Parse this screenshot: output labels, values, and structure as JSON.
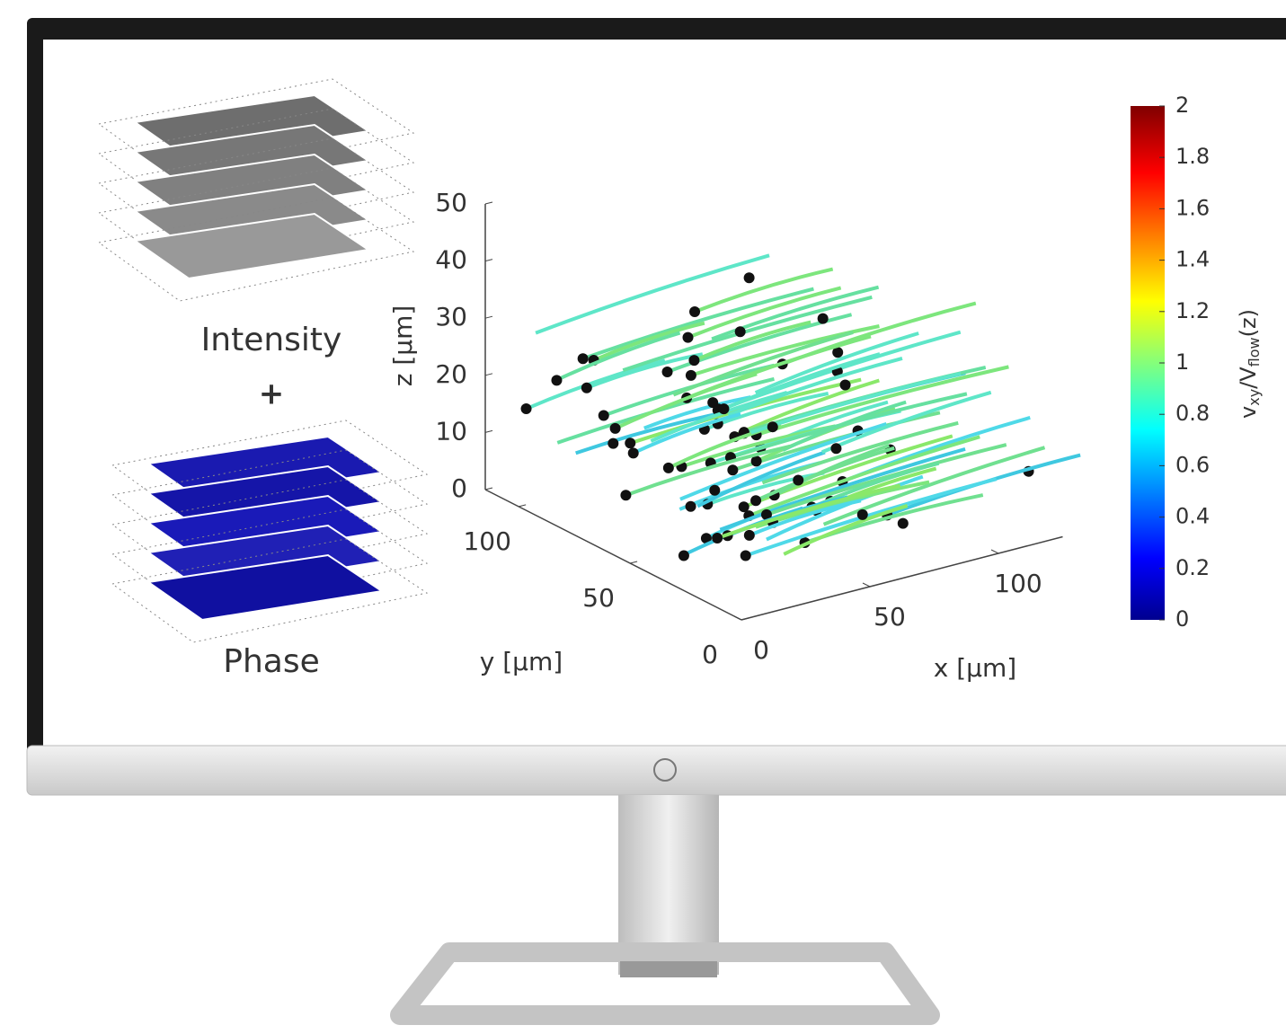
{
  "panels": {
    "intensity_label": "Intensity",
    "plus": "+",
    "phase_label": "Phase"
  },
  "plot": {
    "z_axis": {
      "label": "z [μm]",
      "lim": [
        0,
        50
      ],
      "ticks": [
        0,
        10,
        20,
        30,
        40,
        50
      ]
    },
    "y_axis": {
      "label": "y [μm]",
      "lim": [
        0,
        115
      ],
      "ticks": [
        0,
        50,
        100
      ]
    },
    "x_axis": {
      "label": "x [μm]",
      "lim": [
        0,
        125
      ],
      "ticks": [
        0,
        50,
        100
      ]
    },
    "colorbar": {
      "label": [
        "v",
        "xy",
        "/V",
        "flow",
        "(z)"
      ],
      "lim": [
        0,
        2
      ],
      "ticks": [
        0,
        0.2,
        0.4,
        0.6,
        0.8,
        1,
        1.2,
        1.4,
        1.6,
        1.8,
        2
      ]
    }
  }
}
